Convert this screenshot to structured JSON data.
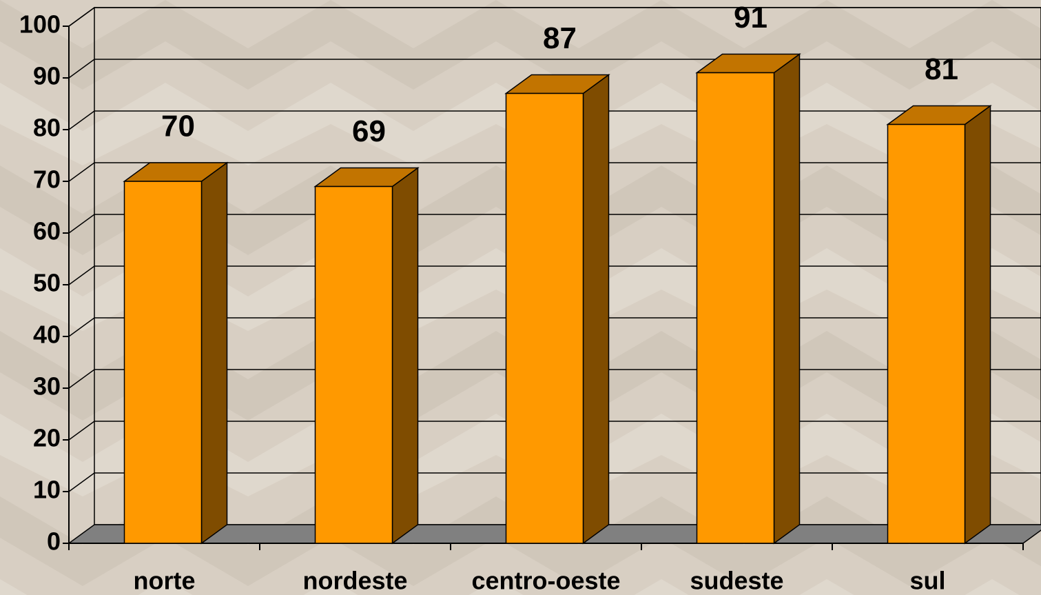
{
  "chart_data": {
    "type": "bar3d",
    "categories": [
      "norte",
      "nordeste",
      "centro-oeste",
      "sudeste",
      "sul"
    ],
    "values": [
      70,
      69,
      87,
      91,
      81
    ],
    "color": "#ff9900",
    "side_color": "#7f4c00",
    "top_color": "#c27400",
    "ylim": [
      0,
      100
    ],
    "yticks": [
      0,
      10,
      20,
      30,
      40,
      50,
      60,
      70,
      80,
      90,
      100
    ],
    "grid": true
  }
}
